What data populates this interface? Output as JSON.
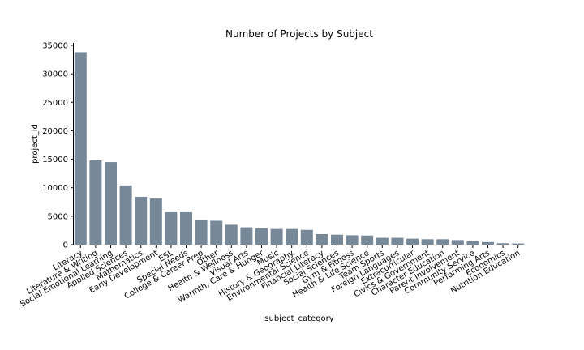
{
  "chart_data": {
    "type": "bar",
    "title": "Number of Projects by Subject",
    "xlabel": "subject_category",
    "ylabel": "project_id",
    "ylim": [
      0,
      35000
    ],
    "yticks": [
      0,
      5000,
      10000,
      15000,
      20000,
      25000,
      30000,
      35000
    ],
    "ytick_labels": [
      "0",
      "5000",
      "10000",
      "15000",
      "20000",
      "25000",
      "30000",
      "35000"
    ],
    "grid": false,
    "bar_color": "#778899",
    "categories": [
      "Literacy",
      "Literature & Writing",
      "Social Emotional Learning",
      "Applied Sciences",
      "Mathematics",
      "Early Development",
      "ESL",
      "Special Needs",
      "College & Career Prep",
      "Other",
      "Health & Wellness",
      "Visual Arts",
      "Warmth, Care & Hunger",
      "Music",
      "History & Geography",
      "Environmental Science",
      "Financial Literacy",
      "Social Sciences",
      "Gym & Fitness",
      "Health & Life Science",
      "Team Sports",
      "Foreign Languages",
      "Extracurricular",
      "Civics & Government",
      "Character Education",
      "Parent Involvement",
      "Community Service",
      "Performing Arts",
      "Economics",
      "Nutrition Education"
    ],
    "values": [
      33800,
      14800,
      14500,
      10400,
      8400,
      8100,
      5700,
      5700,
      4300,
      4200,
      3500,
      3050,
      2900,
      2750,
      2750,
      2600,
      1850,
      1750,
      1650,
      1600,
      1200,
      1200,
      1050,
      950,
      950,
      800,
      600,
      450,
      250,
      200
    ]
  }
}
